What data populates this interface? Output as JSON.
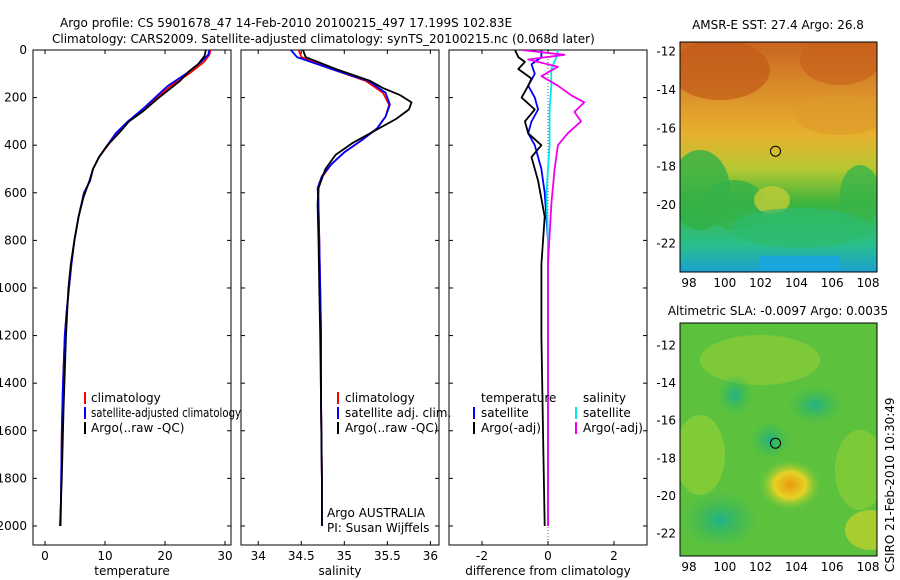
{
  "title_line1": "Argo profile: CS 5901678_47 14-Feb-2010 20100215_497 17.199S 102.83E",
  "title_line2": "Climatology: CARS2009. Satellite-adjusted climatology: synTS_20100215.nc (0.068d later)",
  "stamp": "CSIRO 21-Feb-2010 10:30:49",
  "colors": {
    "clim": "#ff0000",
    "sat": "#0000ff",
    "argo": "#000000",
    "sal_sat": "#00e5ee",
    "sal_argo": "#ee00ee"
  },
  "chart_data": [
    {
      "type": "line",
      "id": "temperature",
      "xlabel": "temperature",
      "xlim": [
        -2,
        31
      ],
      "ylim": [
        2080,
        0
      ],
      "xticks": [
        0,
        10,
        20,
        30
      ],
      "yticks": [
        0,
        200,
        400,
        600,
        800,
        1000,
        1200,
        1400,
        1600,
        1800,
        2000
      ],
      "legend": [
        "climatology",
        "satellite-adjusted climatology",
        "Argo(..raw -QC)"
      ],
      "series": [
        {
          "name": "climatology",
          "color": "clim",
          "x": [
            27.6,
            27.4,
            26.5,
            24.0,
            21.0,
            16.5,
            14.0,
            12.0,
            10.5,
            9.0,
            8.0,
            7.5,
            6.5,
            5.6,
            4.9,
            4.4,
            4.0,
            3.6,
            3.3,
            3.0,
            2.8,
            2.6
          ],
          "y": [
            0,
            20,
            50,
            100,
            150,
            250,
            300,
            350,
            400,
            450,
            500,
            550,
            600,
            700,
            800,
            900,
            1000,
            1100,
            1200,
            1400,
            1600,
            2000
          ]
        },
        {
          "name": "satellite-adjusted climatology",
          "color": "sat",
          "x": [
            27.4,
            27.2,
            26.0,
            23.5,
            20.5,
            16.2,
            13.8,
            11.8,
            10.4,
            9.0,
            8.0,
            7.5,
            6.5,
            5.6,
            4.9,
            4.4,
            4.0,
            3.6,
            3.3,
            3.0,
            2.8,
            2.6
          ],
          "y": [
            0,
            20,
            50,
            100,
            150,
            250,
            300,
            350,
            400,
            450,
            500,
            550,
            600,
            700,
            800,
            900,
            1000,
            1100,
            1200,
            1400,
            1600,
            2000
          ]
        },
        {
          "name": "Argo(..raw -QC)",
          "color": "argo",
          "x": [
            26.8,
            26.6,
            25.5,
            24.0,
            22.5,
            19.0,
            16.2,
            14.0,
            12.3,
            10.4,
            9.0,
            8.0,
            7.4,
            6.4,
            5.6,
            4.9,
            4.3,
            3.9,
            3.5,
            3.1,
            2.8,
            2.5
          ],
          "y": [
            0,
            25,
            60,
            90,
            130,
            200,
            260,
            300,
            350,
            400,
            450,
            500,
            550,
            620,
            700,
            800,
            900,
            1000,
            1200,
            1500,
            1800,
            2000
          ]
        }
      ]
    },
    {
      "type": "line",
      "id": "salinity",
      "xlabel": "salinity",
      "xlim": [
        33.8,
        36.1
      ],
      "ylim": [
        2080,
        0
      ],
      "xticks": [
        34,
        34.5,
        35,
        35.5,
        36
      ],
      "yticks": [
        0,
        200,
        400,
        600,
        800,
        1000,
        1200,
        1400,
        1600,
        1800,
        2000
      ],
      "legend": [
        "climatology",
        "satellite adj. clim.",
        "Argo(..raw -QC)"
      ],
      "series": [
        {
          "name": "climatology",
          "color": "clim",
          "x": [
            34.47,
            34.5,
            34.85,
            35.25,
            35.45,
            35.52,
            35.48,
            35.38,
            35.2,
            35.0,
            34.85,
            34.75,
            34.7,
            34.7,
            34.71,
            34.72,
            34.73,
            34.73,
            34.74,
            34.74
          ],
          "y": [
            0,
            30,
            80,
            130,
            180,
            230,
            280,
            330,
            380,
            430,
            480,
            530,
            580,
            650,
            800,
            1000,
            1200,
            1500,
            1800,
            2000
          ]
        },
        {
          "name": "satellite adj. clim.",
          "color": "sat",
          "x": [
            34.38,
            34.45,
            34.85,
            35.28,
            35.48,
            35.53,
            35.48,
            35.38,
            35.2,
            35.0,
            34.85,
            34.74,
            34.69,
            34.7,
            34.71,
            34.72,
            34.73,
            34.73,
            34.74,
            34.74
          ],
          "y": [
            0,
            30,
            80,
            130,
            180,
            230,
            280,
            330,
            380,
            430,
            480,
            530,
            580,
            650,
            800,
            1000,
            1200,
            1500,
            1800,
            2000
          ]
        },
        {
          "name": "Argo(..raw -QC)",
          "color": "argo",
          "x": [
            34.52,
            34.55,
            34.9,
            35.3,
            35.45,
            35.65,
            35.78,
            35.75,
            35.6,
            35.35,
            35.1,
            34.9,
            34.78,
            34.7,
            34.69,
            34.7,
            34.71,
            34.72,
            34.73,
            34.74,
            34.74
          ],
          "y": [
            0,
            30,
            80,
            130,
            160,
            190,
            220,
            250,
            290,
            340,
            390,
            440,
            500,
            580,
            650,
            800,
            1000,
            1200,
            1500,
            1800,
            2000
          ]
        }
      ],
      "annotations": [
        "Argo AUSTRALIA",
        "PI: Susan Wijffels"
      ]
    },
    {
      "type": "line",
      "id": "difference",
      "xlabel": "difference from climatology",
      "xlim": [
        -3,
        3
      ],
      "ylim": [
        2080,
        0
      ],
      "xticks": [
        -2,
        0,
        2
      ],
      "yticks": [
        0,
        200,
        400,
        600,
        800,
        1000,
        1200,
        1400,
        1600,
        1800,
        2000
      ],
      "legend_col1": [
        "temperature",
        "satellite",
        "Argo(-adj)"
      ],
      "legend_col2": [
        "salinity",
        "satellite",
        "Argo(-adj)"
      ],
      "series": [
        {
          "name": "temperature satellite",
          "color": "sat",
          "x": [
            -0.2,
            -0.2,
            -0.5,
            -0.4,
            -0.6,
            -0.4,
            -0.3,
            -0.5,
            -0.6,
            -0.4,
            -0.3,
            -0.2,
            -0.1,
            0.0,
            0.0,
            0.0
          ],
          "y": [
            0,
            30,
            60,
            100,
            150,
            200,
            250,
            300,
            350,
            400,
            450,
            500,
            600,
            800,
            1200,
            2000
          ]
        },
        {
          "name": "temperature Argo(-adj)",
          "color": "argo",
          "x": [
            -1.0,
            -0.9,
            -0.7,
            -0.9,
            -0.5,
            -0.6,
            -0.8,
            -0.4,
            -0.7,
            -0.6,
            -0.2,
            -0.5,
            -0.3,
            -0.1,
            -0.2,
            -0.2,
            -0.15,
            -0.1
          ],
          "y": [
            0,
            30,
            50,
            80,
            120,
            150,
            200,
            250,
            300,
            350,
            400,
            450,
            550,
            700,
            900,
            1200,
            1600,
            2000
          ]
        },
        {
          "name": "salinity satellite",
          "color": "sal_sat",
          "x": [
            0.3,
            0.25,
            0.1,
            0.1,
            0.05,
            0.05,
            0.0,
            -0.05,
            0.0,
            0.0,
            0.0
          ],
          "y": [
            0,
            30,
            80,
            150,
            250,
            400,
            500,
            600,
            800,
            1200,
            2000
          ]
        },
        {
          "name": "salinity Argo(-adj)",
          "color": "sal_argo",
          "x": [
            -0.8,
            0.5,
            -0.6,
            0.3,
            -0.2,
            0.3,
            0.7,
            1.1,
            0.8,
            1.0,
            0.6,
            0.3,
            0.2,
            0.1,
            0.0,
            0.0,
            0.0
          ],
          "y": [
            0,
            20,
            40,
            70,
            110,
            150,
            190,
            220,
            260,
            300,
            350,
            400,
            500,
            650,
            900,
            1300,
            2000
          ]
        }
      ]
    },
    {
      "type": "heatmap",
      "id": "sst",
      "title": "AMSR-E SST: 27.4 Argo: 26.8",
      "xlim": [
        97.5,
        108.5
      ],
      "ylim": [
        -23.5,
        -11.5
      ],
      "xticks": [
        98,
        100,
        102,
        104,
        106,
        108
      ],
      "yticks": [
        -12,
        -14,
        -16,
        -18,
        -20,
        -22
      ],
      "marker": {
        "lon": 102.83,
        "lat": -17.199
      }
    },
    {
      "type": "heatmap",
      "id": "sla",
      "title": "Altimetric SLA: -0.0097 Argo: 0.0035",
      "xlim": [
        97.5,
        108.5
      ],
      "ylim": [
        -23.2,
        -10.8
      ],
      "xticks": [
        98,
        100,
        102,
        104,
        106,
        108
      ],
      "yticks": [
        -12,
        -14,
        -16,
        -18,
        -20,
        -22
      ],
      "marker": {
        "lon": 102.83,
        "lat": -17.199
      }
    }
  ]
}
